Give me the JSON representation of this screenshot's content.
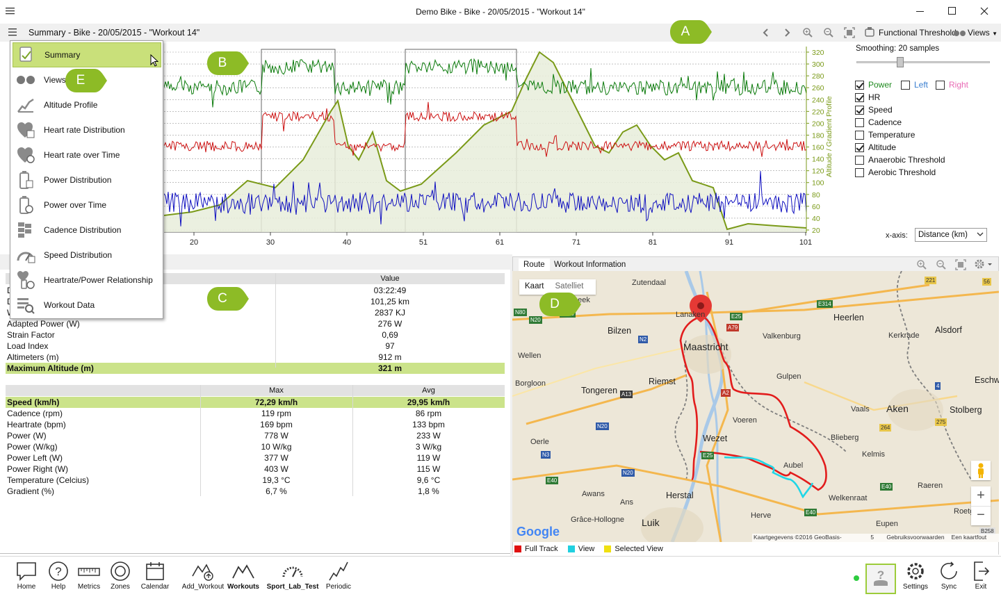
{
  "window": {
    "title": "Demo Bike - Bike - 20/05/2015 - \"Workout 14\""
  },
  "toolbar": {
    "doc_title": "Summary - Bike - 20/05/2015 - \"Workout 14\"",
    "functional_threshold": "Functional Threshold",
    "views": "Views"
  },
  "callouts": {
    "a": "A",
    "b": "B",
    "c": "C",
    "d": "D",
    "e": "E"
  },
  "chart": {
    "y_axis_label": "Altitude / Gradient Profile",
    "y_ticks": [
      "320",
      "300",
      "280",
      "260",
      "240",
      "220",
      "200",
      "180",
      "160",
      "140",
      "120",
      "100",
      "80",
      "60",
      "40",
      "20"
    ],
    "x_ticks": [
      "20",
      "30",
      "40",
      "51",
      "61",
      "71",
      "81",
      "91",
      "101"
    ],
    "colors": {
      "power": "#0a7a0a",
      "hr": "#cc1010",
      "speed": "#1010c0",
      "altitude": "#7a9a18"
    }
  },
  "right_panel": {
    "smoothing": "Smoothing: 20 samples",
    "smoothing_level": 0.2,
    "series": [
      {
        "label": "Power",
        "checked": true
      },
      {
        "label": "Left",
        "checked": false
      },
      {
        "label": "Right",
        "checked": false
      },
      {
        "label": "HR",
        "checked": true
      },
      {
        "label": "Speed",
        "checked": true
      },
      {
        "label": "Cadence",
        "checked": false
      },
      {
        "label": "Temperature",
        "checked": false
      },
      {
        "label": "Altitude",
        "checked": true
      },
      {
        "label": "Anaerobic Threshold",
        "checked": false
      },
      {
        "label": "Aerobic Threshold",
        "checked": false
      }
    ],
    "xaxis_label": "x-axis:",
    "xaxis_value": "Distance (km)"
  },
  "menu": {
    "items": [
      {
        "label": "Summary",
        "icon": "summary-icon"
      },
      {
        "label": "Views (editable)",
        "icon": "views-icon"
      },
      {
        "label": "Altitude Profile",
        "icon": "altitude-profile-icon"
      },
      {
        "label": "Heart rate Distribution",
        "icon": "heart-distribution-icon"
      },
      {
        "label": "Heart rate over Time",
        "icon": "heart-time-icon"
      },
      {
        "label": "Power Distribution",
        "icon": "power-distribution-icon"
      },
      {
        "label": "Power over Time",
        "icon": "power-time-icon"
      },
      {
        "label": "Cadence Distribution",
        "icon": "cadence-distribution-icon"
      },
      {
        "label": "Speed Distribution",
        "icon": "speed-distribution-icon"
      },
      {
        "label": "Heartrate/Power Relationship",
        "icon": "hr-power-icon"
      },
      {
        "label": "Workout Data",
        "icon": "workout-data-icon"
      }
    ]
  },
  "summary": {
    "value_header": "Value",
    "rows": [
      {
        "label": "D",
        "value": "03:22:49"
      },
      {
        "label": "D",
        "value": "101,25 km"
      },
      {
        "label": "W",
        "value": "2837 KJ"
      },
      {
        "label": "Adapted Power (W)",
        "value": "276 W"
      },
      {
        "label": "Strain Factor",
        "value": "0,69"
      },
      {
        "label": "Load Index",
        "value": "97"
      },
      {
        "label": "Altimeters (m)",
        "value": "912 m"
      },
      {
        "label": "Maximum Altitude (m)",
        "value": "321 m"
      }
    ],
    "max_header": "Max",
    "avg_header": "Avg",
    "stats": [
      {
        "label": "Speed (km/h)",
        "max": "72,29 km/h",
        "avg": "29,95 km/h"
      },
      {
        "label": "Cadence (rpm)",
        "max": "119 rpm",
        "avg": "86 rpm"
      },
      {
        "label": "Heartrate (bpm)",
        "max": "169 bpm",
        "avg": "133 bpm"
      },
      {
        "label": "Power (W)",
        "max": "778 W",
        "avg": "233 W"
      },
      {
        "label": "Power (W/kg)",
        "max": "10 W/kg",
        "avg": "3 W/kg"
      },
      {
        "label": "Power Left (W)",
        "max": "377 W",
        "avg": "119 W"
      },
      {
        "label": "Power Right (W)",
        "max": "403 W",
        "avg": "115 W"
      },
      {
        "label": "Temperature (Celcius)",
        "max": "19,3 °C",
        "avg": "9,6 °C"
      },
      {
        "label": "Gradient (%)",
        "max": "6,7 %",
        "avg": "1,8 %"
      }
    ]
  },
  "map": {
    "tabs": [
      "Route",
      "Workout Information"
    ],
    "map_types": [
      "Kaart",
      "Satelliet"
    ],
    "places": {
      "zutendaal": "Zutendaal",
      "lanaken": "Lanaken",
      "heerlen": "Heerlen",
      "bilzen": "Bilzen",
      "maastricht": "Maastricht",
      "valkenburg": "Valkenburg",
      "kerkrade": "Kerkrade",
      "alsdorf": "Alsdorf",
      "wellen": "Wellen",
      "gulpen": "Gulpen",
      "riemst": "Riemst",
      "borgloon": "Borgloon",
      "eschw": "Eschw",
      "tongeren": "Tongeren",
      "aken": "Aken",
      "vaals": "Vaals",
      "stolberg": "Stolberg",
      "voeren": "Voeren",
      "oerle": "Oerle",
      "wezet": "Wezet",
      "blieberg": "Blieberg",
      "kelmis": "Kelmis",
      "aubel": "Aubel",
      "raeren": "Raeren",
      "awans": "Awans",
      "ans": "Ans",
      "herstal": "Herstal",
      "welkenraat": "Welkenraat",
      "roetg": "Roetg",
      "grace": "Grâce-Hollogne",
      "herve": "Herve",
      "luik": "Luik",
      "eupen": "Eupen",
      "peek": "peek"
    },
    "roads": {
      "n80": "N80",
      "n20a": "N20",
      "e313": "E313",
      "e25a": "E25",
      "e314": "E314",
      "r221": "221",
      "r56": "56",
      "a79": "A79",
      "n2": "N2",
      "a2": "A2",
      "a13": "A13",
      "r4": "4",
      "n20b": "N20",
      "r264": "264",
      "r275": "275",
      "n3": "N3",
      "e25b": "E25",
      "n20c": "N20",
      "e40a": "E40",
      "e40b": "E40",
      "e40c": "E40",
      "b258": "B258"
    },
    "attribution": "Kaartgegevens ©2016 GeoBasis-DE/BKG (©2009), Google",
    "scale": "5 km",
    "terms": "Gebruiksvoorwaarden",
    "report": "Een kaartfout rapporteren",
    "google": "Google",
    "zoom_in": "+",
    "zoom_out": "−",
    "legend": [
      {
        "label": "Full Track",
        "color": "#e01010"
      },
      {
        "label": "View",
        "color": "#20d0e0"
      },
      {
        "label": "Selected View",
        "color": "#f0e010"
      }
    ]
  },
  "bottombar": {
    "left": [
      {
        "label": "Home",
        "icon": "home-icon"
      },
      {
        "label": "Help",
        "icon": "help-icon"
      },
      {
        "label": "Metrics",
        "icon": "metrics-icon"
      },
      {
        "label": "Zones",
        "icon": "zones-icon"
      },
      {
        "label": "Calendar",
        "icon": "calendar-icon"
      },
      {
        "label": "Add_Workout",
        "icon": "add-workout-icon"
      },
      {
        "label": "Workouts",
        "icon": "workouts-icon"
      },
      {
        "label": "Sport_Lab_Test",
        "icon": "sport-lab-icon"
      },
      {
        "label": "Periodic",
        "icon": "periodic-icon"
      }
    ],
    "right": [
      {
        "label": "Settings",
        "icon": "settings-icon"
      },
      {
        "label": "Sync",
        "icon": "sync-icon"
      },
      {
        "label": "Exit",
        "icon": "exit-icon"
      }
    ]
  }
}
